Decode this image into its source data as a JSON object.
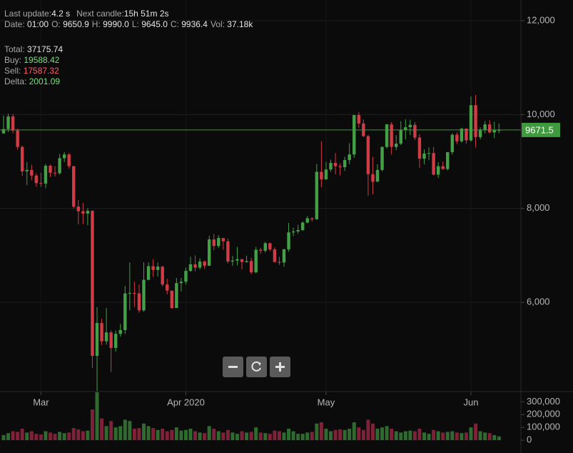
{
  "header": {
    "status": [
      {
        "label": "Last update:",
        "value": "4.2 s"
      },
      {
        "label": "Next candle:",
        "value": "15h 51m 2s"
      }
    ],
    "ohlc": [
      {
        "label": "Date:",
        "value": "01:00"
      },
      {
        "label": "O:",
        "value": "9650.9"
      },
      {
        "label": "H:",
        "value": "9990.0"
      },
      {
        "label": "L:",
        "value": "9645.0"
      },
      {
        "label": "C:",
        "value": "9936.4"
      },
      {
        "label": "Vol:",
        "value": "37.18k"
      }
    ],
    "totals": [
      {
        "label": "Total:",
        "value": "37175.74",
        "color": "#e6e6e6"
      },
      {
        "label": "Buy:",
        "value": "19588.42",
        "color": "#7fdc7f"
      },
      {
        "label": "Sell:",
        "value": "17587.32",
        "color": "#ff5c6c"
      },
      {
        "label": "Delta:",
        "value": "2001.09",
        "color": "#7fdc7f"
      }
    ]
  },
  "chart_data": {
    "type": "candlestick",
    "categories": [
      null,
      null,
      null,
      null,
      null,
      null,
      null,
      null,
      "Mar",
      null,
      null,
      null,
      null,
      null,
      null,
      null,
      null,
      null,
      null,
      null,
      null,
      null,
      null,
      null,
      null,
      null,
      null,
      null,
      null,
      null,
      null,
      null,
      null,
      null,
      null,
      null,
      null,
      null,
      null,
      "Apr 2020",
      null,
      null,
      null,
      null,
      null,
      null,
      null,
      null,
      null,
      null,
      null,
      null,
      null,
      null,
      null,
      null,
      null,
      null,
      null,
      null,
      null,
      null,
      null,
      null,
      null,
      null,
      null,
      null,
      null,
      "May",
      null,
      null,
      null,
      null,
      null,
      null,
      null,
      null,
      null,
      null,
      null,
      null,
      null,
      null,
      null,
      null,
      null,
      null,
      null,
      null,
      null,
      null,
      null,
      null,
      null,
      null,
      null,
      null,
      null,
      null,
      "Jun",
      null,
      null,
      null,
      null,
      null,
      null
    ],
    "open": [
      9600,
      9690,
      9960,
      9660,
      9310,
      8790,
      8820,
      8700,
      8540,
      8530,
      8910,
      8760,
      8750,
      9070,
      9150,
      8900,
      8040,
      7940,
      7890,
      7950,
      4860,
      5560,
      5170,
      5360,
      5030,
      5330,
      5410,
      6190,
      6200,
      6190,
      5830,
      6480,
      6770,
      6690,
      6760,
      6380,
      6250,
      5880,
      6410,
      6440,
      6670,
      6810,
      6740,
      6870,
      6780,
      7340,
      7200,
      7370,
      7300,
      6870,
      6890,
      6920,
      6860,
      6880,
      6640,
      7120,
      7100,
      7260,
      7130,
      6860,
      6850,
      7130,
      7490,
      7510,
      7540,
      7700,
      7790,
      7770,
      8780,
      8620,
      8830,
      8970,
      8900,
      8880,
      9030,
      9150,
      9990,
      9810,
      9540,
      8730,
      8570,
      8820,
      9310,
      9790,
      9310,
      9380,
      9670,
      9730,
      9780,
      9510,
      9060,
      9170,
      9180,
      8720,
      8900,
      8840,
      9200,
      9570,
      9430,
      9700,
      9450,
      10200,
      9520,
      9670,
      9790,
      9620,
      9670
    ],
    "high": [
      9980,
      10020,
      10010,
      9700,
      9340,
      8990,
      8930,
      8750,
      8760,
      8950,
      8930,
      8900,
      9160,
      9200,
      9180,
      8910,
      8180,
      8120,
      8000,
      7960,
      5900,
      5650,
      5880,
      5400,
      5400,
      5540,
      6350,
      6850,
      6440,
      6380,
      6850,
      6850,
      6920,
      6850,
      6780,
      6500,
      6250,
      6520,
      6520,
      6740,
      6970,
      7000,
      6940,
      6890,
      7420,
      7460,
      7430,
      7370,
      7360,
      6990,
      7180,
      6920,
      6990,
      6950,
      7180,
      7160,
      7290,
      7270,
      7170,
      6970,
      7140,
      7690,
      7590,
      7650,
      7720,
      7840,
      7810,
      8950,
      9430,
      8990,
      9040,
      9180,
      8960,
      9100,
      9390,
      9990,
      10050,
      9890,
      9570,
      9100,
      8940,
      9320,
      9800,
      9840,
      9560,
      9860,
      9900,
      9890,
      9840,
      9580,
      9260,
      9300,
      9310,
      8990,
      9000,
      9200,
      9600,
      9620,
      9720,
      9710,
      10390,
      10420,
      9730,
      9860,
      9880,
      9850,
      9810
    ],
    "low": [
      9590,
      9630,
      9600,
      9250,
      8690,
      8500,
      8600,
      8460,
      8460,
      8430,
      8670,
      8680,
      8720,
      8990,
      8850,
      8000,
      7660,
      7670,
      7640,
      4600,
      3860,
      5090,
      5100,
      4520,
      4950,
      5270,
      5330,
      5830,
      5900,
      5780,
      5800,
      6470,
      6540,
      6550,
      6340,
      6170,
      5860,
      5910,
      6230,
      6380,
      6650,
      6660,
      6700,
      6710,
      6780,
      7110,
      7160,
      7120,
      6830,
      6780,
      6790,
      6700,
      6840,
      6600,
      6620,
      7030,
      7060,
      7090,
      6850,
      6800,
      6760,
      7080,
      7410,
      7460,
      7520,
      7680,
      7720,
      7760,
      8450,
      8610,
      8780,
      8730,
      8700,
      8800,
      8940,
      9080,
      9720,
      9520,
      8270,
      8300,
      8570,
      8790,
      9280,
      9150,
      9240,
      9350,
      9470,
      9560,
      9460,
      8860,
      8940,
      9030,
      8710,
      8650,
      8820,
      8810,
      9150,
      9370,
      9400,
      9380,
      9420,
      9300,
      9470,
      9600,
      9600,
      9500,
      9600
    ],
    "close": [
      9690,
      9960,
      9660,
      9310,
      8790,
      8820,
      8700,
      8540,
      8530,
      8910,
      8760,
      8750,
      9070,
      9150,
      8900,
      8040,
      7940,
      7890,
      7950,
      4860,
      5560,
      5170,
      5360,
      5030,
      5330,
      5410,
      6190,
      6200,
      6190,
      5830,
      6480,
      6770,
      6690,
      6760,
      6380,
      6250,
      5880,
      6410,
      6440,
      6670,
      6810,
      6740,
      6870,
      6780,
      7340,
      7200,
      7370,
      7300,
      6870,
      6890,
      6920,
      6860,
      6880,
      6640,
      7120,
      7100,
      7260,
      7130,
      6860,
      6850,
      7130,
      7490,
      7510,
      7540,
      7700,
      7790,
      7770,
      8780,
      8620,
      8830,
      8970,
      8900,
      8880,
      9030,
      9150,
      9990,
      9810,
      9540,
      8730,
      8570,
      8820,
      9310,
      9790,
      9310,
      9380,
      9670,
      9730,
      9780,
      9510,
      9060,
      9170,
      9180,
      8720,
      8900,
      8840,
      9200,
      9570,
      9430,
      9700,
      9450,
      10200,
      9520,
      9670,
      9790,
      9620,
      9670,
      9671.5
    ],
    "up_color": "#43a047",
    "down_color": "#d13b45",
    "ylim": [
      4100,
      12440
    ],
    "yticks": [
      {
        "value": 6000,
        "label": "6,000"
      },
      {
        "value": 8000,
        "label": "8,000"
      },
      {
        "value": 10000,
        "label": "10,000"
      },
      {
        "value": 12000,
        "label": "12,000"
      }
    ],
    "last_price": 9671.5,
    "last_price_color": "#3f9a3f",
    "volume": {
      "values": [
        40000,
        55000,
        70000,
        65000,
        90000,
        60000,
        70000,
        50000,
        45000,
        70000,
        60000,
        50000,
        65000,
        55000,
        60000,
        95000,
        85000,
        70000,
        75000,
        240000,
        380000,
        170000,
        110000,
        150000,
        100000,
        110000,
        160000,
        150000,
        90000,
        95000,
        130000,
        110000,
        95000,
        80000,
        90000,
        70000,
        80000,
        100000,
        75000,
        80000,
        90000,
        70000,
        60000,
        55000,
        110000,
        90000,
        70000,
        60000,
        80000,
        60000,
        50000,
        70000,
        60000,
        65000,
        100000,
        60000,
        55000,
        50000,
        75000,
        70000,
        60000,
        90000,
        70000,
        50000,
        50000,
        60000,
        65000,
        130000,
        140000,
        90000,
        70000,
        80000,
        85000,
        80000,
        90000,
        140000,
        100000,
        80000,
        160000,
        130000,
        90000,
        100000,
        110000,
        90000,
        70000,
        60000,
        70000,
        75000,
        70000,
        90000,
        60000,
        50000,
        80000,
        70000,
        60000,
        65000,
        70000,
        60000,
        55000,
        60000,
        100000,
        130000,
        70000,
        60000,
        55000,
        40000,
        30000
      ],
      "up_color": "#2f6b2f",
      "down_color": "#7d2238",
      "ylim": [
        -100000,
        380000
      ],
      "yticks": [
        0,
        {
          "value": 100000,
          "label": "100,000"
        },
        {
          "value": 200000,
          "label": "200,000"
        },
        {
          "value": 300000,
          "label": "300,000"
        }
      ]
    }
  }
}
